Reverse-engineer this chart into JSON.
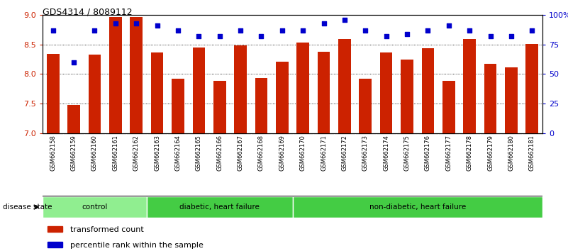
{
  "title": "GDS4314 / 8089112",
  "samples": [
    "GSM662158",
    "GSM662159",
    "GSM662160",
    "GSM662161",
    "GSM662162",
    "GSM662163",
    "GSM662164",
    "GSM662165",
    "GSM662166",
    "GSM662167",
    "GSM662168",
    "GSM662169",
    "GSM662170",
    "GSM662171",
    "GSM662172",
    "GSM662173",
    "GSM662174",
    "GSM662175",
    "GSM662176",
    "GSM662177",
    "GSM662178",
    "GSM662179",
    "GSM662180",
    "GSM662181"
  ],
  "bar_values": [
    8.34,
    7.48,
    8.33,
    8.97,
    8.97,
    8.36,
    7.92,
    8.45,
    7.88,
    8.48,
    7.93,
    8.21,
    8.54,
    8.38,
    8.59,
    7.92,
    8.37,
    8.25,
    8.44,
    7.88,
    8.59,
    8.17,
    8.11,
    8.51
  ],
  "percentile_values": [
    87,
    60,
    87,
    93,
    93,
    91,
    87,
    82,
    82,
    87,
    82,
    87,
    87,
    93,
    96,
    87,
    82,
    84,
    87,
    91,
    87,
    82,
    82,
    87
  ],
  "groups": [
    {
      "label": "control",
      "start": 0,
      "end": 5,
      "color": "#90EE90"
    },
    {
      "label": "diabetic, heart failure",
      "start": 5,
      "end": 12,
      "color": "#44CC44"
    },
    {
      "label": "non-diabetic, heart failure",
      "start": 12,
      "end": 24,
      "color": "#44CC44"
    }
  ],
  "bar_color": "#CC2200",
  "dot_color": "#0000CC",
  "ylim_left": [
    7.0,
    9.0
  ],
  "ylim_right": [
    0,
    100
  ],
  "yticks_left": [
    7.0,
    7.5,
    8.0,
    8.5,
    9.0
  ],
  "yticks_right": [
    0,
    25,
    50,
    75,
    100
  ],
  "ytick_labels_right": [
    "0",
    "25",
    "50",
    "75",
    "100%"
  ],
  "grid_values": [
    7.5,
    8.0,
    8.5
  ],
  "bg_color": "#FFFFFF",
  "plot_bg": "#FFFFFF",
  "label_bg": "#C8C8C8"
}
